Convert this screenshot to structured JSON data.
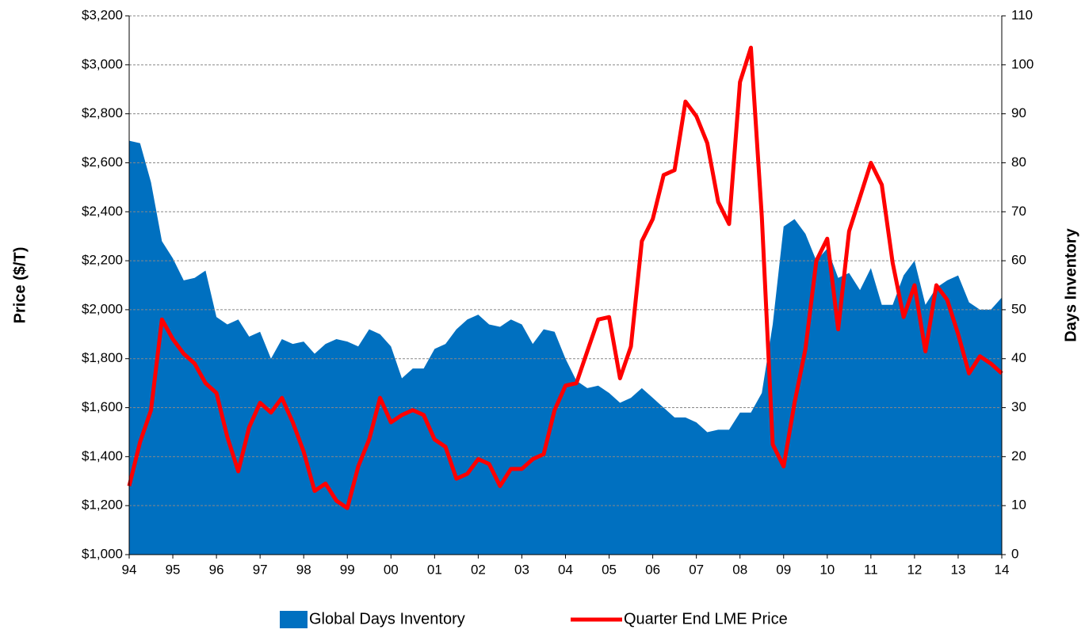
{
  "chart_data": {
    "type": "combo",
    "ylabel": "Price ($/T)",
    "y2label": "Days Inventory",
    "categories": [
      "94",
      null,
      null,
      null,
      "95",
      null,
      null,
      null,
      "96",
      null,
      null,
      null,
      "97",
      null,
      null,
      null,
      "98",
      null,
      null,
      null,
      "99",
      null,
      null,
      null,
      "00",
      null,
      null,
      null,
      "01",
      null,
      null,
      null,
      "02",
      null,
      null,
      null,
      "03",
      null,
      null,
      null,
      "04",
      null,
      null,
      null,
      "05",
      null,
      null,
      null,
      "06",
      null,
      null,
      null,
      "07",
      null,
      null,
      null,
      "08",
      null,
      null,
      null,
      "09",
      null,
      null,
      null,
      "10",
      null,
      null,
      null,
      "11",
      null,
      null,
      null,
      "12",
      null,
      null,
      null,
      "13",
      null,
      null,
      null,
      "14"
    ],
    "series": [
      {
        "name": "Global Days Inventory",
        "type": "area",
        "color": "#0070c0",
        "axis": "y2",
        "values": [
          84.5,
          84,
          76,
          64,
          60.5,
          56,
          56.5,
          58,
          48.5,
          47,
          48,
          44.5,
          45.5,
          40,
          44,
          43,
          43.5,
          41,
          43,
          44,
          43.5,
          42.5,
          46,
          45,
          42.5,
          36,
          38,
          38,
          42,
          43,
          46,
          48,
          49,
          47,
          46.5,
          48,
          47,
          43,
          46,
          45.5,
          40,
          35.5,
          34,
          34.5,
          33,
          31,
          32,
          34,
          32,
          30,
          28,
          28,
          27,
          25,
          25.5,
          25.5,
          29,
          29,
          33,
          47,
          67,
          68.5,
          65.5,
          60,
          62.5,
          56.5,
          57.5,
          54,
          58.5,
          51,
          51,
          57,
          60,
          51,
          54.5,
          56,
          57,
          51.5,
          50,
          50,
          52.5
        ]
      },
      {
        "name": "Quarter End LME Price",
        "type": "line",
        "color": "#ff0000",
        "values": [
          1280,
          1460,
          1590,
          1960,
          1880,
          1820,
          1780,
          1700,
          1660,
          1480,
          1340,
          1520,
          1620,
          1580,
          1640,
          1540,
          1420,
          1260,
          1290,
          1220,
          1190,
          1360,
          1470,
          1640,
          1540,
          1570,
          1590,
          1570,
          1470,
          1440,
          1310,
          1330,
          1390,
          1370,
          1280,
          1350,
          1350,
          1390,
          1410,
          1590,
          1690,
          1700,
          1830,
          1960,
          1970,
          1720,
          1850,
          2280,
          2370,
          2550,
          2570,
          2850,
          2790,
          2680,
          2440,
          2350,
          2930,
          3070,
          2380,
          1450,
          1360,
          1620,
          1840,
          2200,
          2290,
          1920,
          2320,
          2460,
          2600,
          2510,
          2190,
          1970,
          2100,
          1830,
          2100,
          2040,
          1900,
          1740,
          1810,
          1780,
          1740
        ]
      }
    ],
    "ylim": [
      1000,
      3200
    ],
    "yticks": [
      {
        "value": 1000,
        "label": "$1,000"
      },
      {
        "value": 1200,
        "label": "$1,200"
      },
      {
        "value": 1400,
        "label": "$1,400"
      },
      {
        "value": 1600,
        "label": "$1,600"
      },
      {
        "value": 1800,
        "label": "$1,800"
      },
      {
        "value": 2000,
        "label": "$2,000"
      },
      {
        "value": 2200,
        "label": "$2,200"
      },
      {
        "value": 2400,
        "label": "$2,400"
      },
      {
        "value": 2600,
        "label": "$2,600"
      },
      {
        "value": 2800,
        "label": "$2,800"
      },
      {
        "value": 3000,
        "label": "$3,000"
      },
      {
        "value": 3200,
        "label": "$3,200"
      }
    ],
    "y2lim": [
      0,
      110
    ],
    "y2ticks": [
      0,
      10,
      20,
      30,
      40,
      50,
      60,
      70,
      80,
      90,
      100,
      110
    ],
    "grid": true,
    "legend": "bottom"
  }
}
